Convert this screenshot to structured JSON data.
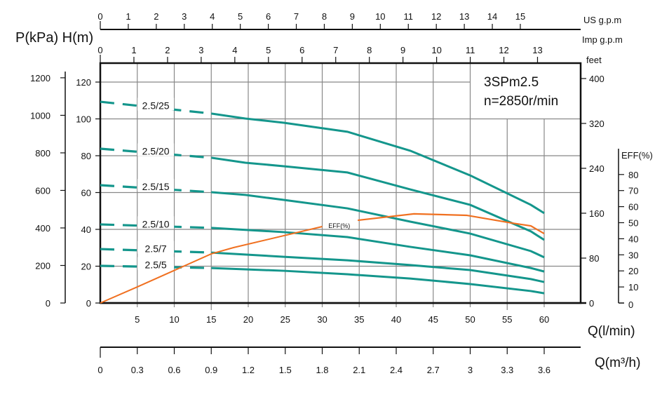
{
  "chart_data": {
    "type": "line",
    "title": "3SPm2.5",
    "subtitle": "n=2850r/min",
    "ylabel": "P(kPa) H(m)",
    "xlabel": "Q(l/min)",
    "xlabel_m3h": "Q(m³/h)",
    "xlim": [
      0,
      65
    ],
    "ylim": [
      0,
      130
    ],
    "grid": true,
    "colors": {
      "head": "#14968c",
      "eff": "#f07020",
      "axis": "#111111",
      "grid": "#888888"
    },
    "x_ticks_lmin": [
      5,
      10,
      15,
      20,
      25,
      30,
      35,
      40,
      45,
      50,
      55,
      60
    ],
    "h_ticks": [
      0,
      20,
      40,
      60,
      80,
      100,
      120
    ],
    "kpa_ticks": [
      0,
      200,
      400,
      600,
      800,
      1000,
      1200
    ],
    "feet_label": "feet",
    "feet_ticks": [
      0,
      80,
      160,
      240,
      320,
      400
    ],
    "eff_label": "EFF(%)",
    "eff_ticks": [
      0,
      10,
      20,
      30,
      40,
      50,
      60,
      70,
      80
    ],
    "us_gpm_label": "US g.p.m",
    "us_gpm_ticks": [
      0,
      1,
      2,
      3,
      4,
      5,
      6,
      7,
      8,
      9,
      10,
      11,
      12,
      13,
      14,
      15
    ],
    "imp_gpm_label": "Imp g.p.m",
    "imp_gpm_ticks": [
      0,
      1,
      2,
      3,
      4,
      5,
      6,
      7,
      8,
      9,
      10,
      11,
      12,
      13
    ],
    "m3h_ticks": [
      "0",
      "0.3",
      "0.6",
      "0.9",
      "1.2",
      "1.5",
      "1.8",
      "2.1",
      "2.4",
      "2.7",
      "3",
      "3.3",
      "3.6"
    ],
    "series": [
      {
        "name": "2.5/25",
        "x": [
          0,
          15,
          19.6,
          24.8,
          33.4,
          41.9,
          50,
          58.2,
          60
        ],
        "y": [
          109.3,
          102.9,
          100.2,
          97.9,
          93,
          82.7,
          69.3,
          53.3,
          48.8
        ]
      },
      {
        "name": "2.5/20",
        "x": [
          0,
          15,
          19.6,
          24.8,
          33.4,
          41.9,
          50,
          58.2,
          60
        ],
        "y": [
          83.8,
          78.9,
          76.2,
          74.3,
          70.9,
          61.7,
          53.3,
          38.9,
          34.3
        ]
      },
      {
        "name": "2.5/15",
        "x": [
          0,
          15,
          19.6,
          24.8,
          33.4,
          41.9,
          50,
          58.2,
          60
        ],
        "y": [
          64,
          60.2,
          58.7,
          56,
          51.4,
          44.2,
          37.7,
          28.2,
          24.8
        ]
      },
      {
        "name": "2.5/10",
        "x": [
          0,
          15,
          24.8,
          33.4,
          41.9,
          50,
          58.2,
          60
        ],
        "y": [
          42.7,
          40.8,
          38.5,
          35.8,
          30.5,
          25.9,
          19,
          17.1
        ]
      },
      {
        "name": "2.5/7",
        "x": [
          0,
          15,
          24.8,
          33.4,
          41.9,
          50,
          58.2,
          60
        ],
        "y": [
          29.3,
          27.4,
          25.1,
          23.2,
          20.6,
          17.9,
          13,
          11.4
        ]
      },
      {
        "name": "2.5/5",
        "x": [
          0,
          15,
          24.8,
          33.4,
          41.9,
          50,
          58.2,
          60
        ],
        "y": [
          20.2,
          19,
          17.5,
          15.6,
          13.3,
          10.3,
          6.5,
          5.3
        ]
      }
    ],
    "efficiency": {
      "name": "EFF(%)",
      "x": [
        0,
        5,
        15,
        18,
        30,
        34.8,
        42.4,
        49.5,
        55.6,
        58.2,
        60
      ],
      "y": [
        0,
        10,
        30.6,
        34.5,
        47.6,
        51.5,
        55.5,
        54.6,
        49.8,
        48,
        43.2
      ]
    }
  }
}
